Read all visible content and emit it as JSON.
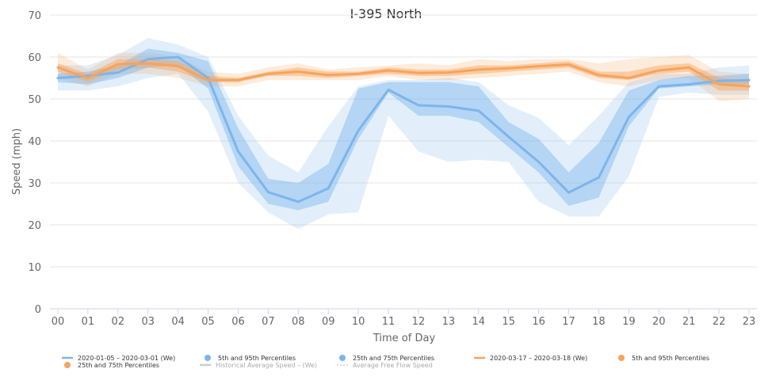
{
  "chart_data": {
    "type": "line",
    "title": "I-395 North",
    "xlabel": "Time of Day",
    "ylabel": "Speed (mph)",
    "categories": [
      "00",
      "01",
      "02",
      "03",
      "04",
      "05",
      "06",
      "07",
      "08",
      "09",
      "10",
      "11",
      "12",
      "13",
      "14",
      "15",
      "16",
      "17",
      "18",
      "19",
      "20",
      "21",
      "22",
      "23"
    ],
    "ylim": [
      0,
      70
    ],
    "yticks": [
      0,
      10,
      20,
      30,
      40,
      50,
      60,
      70
    ],
    "grid": "horizontal",
    "legend_position": "bottom",
    "series": [
      {
        "name": "2020-01-05 – 2020-03-01 (We)",
        "color": "#7cb5ec",
        "values": [
          55.0,
          55.5,
          56.3,
          59.5,
          60.0,
          55.0,
          37.5,
          27.8,
          25.5,
          28.7,
          42.5,
          52.2,
          48.5,
          48.2,
          47.2,
          41.0,
          35.0,
          27.7,
          31.3,
          45.7,
          53.0,
          53.5,
          54.3,
          54.5
        ],
        "p5": [
          52.0,
          52.0,
          53.0,
          55.0,
          56.0,
          47.0,
          30.0,
          23.0,
          19.0,
          22.5,
          23.0,
          46.0,
          37.5,
          35.0,
          35.5,
          35.0,
          25.5,
          22.0,
          22.0,
          31.5,
          50.5,
          51.5,
          51.0,
          51.0
        ],
        "p95": [
          58.0,
          58.0,
          60.5,
          64.5,
          63.0,
          60.0,
          46.0,
          36.5,
          32.5,
          43.5,
          53.0,
          54.5,
          54.5,
          55.0,
          54.0,
          48.5,
          45.5,
          39.0,
          46.0,
          54.0,
          56.0,
          56.0,
          57.5,
          58.0
        ],
        "p25": [
          54.0,
          53.5,
          55.0,
          57.5,
          58.0,
          52.5,
          34.0,
          25.0,
          23.5,
          25.5,
          40.5,
          51.5,
          46.0,
          46.0,
          44.5,
          38.5,
          32.5,
          24.5,
          26.5,
          43.5,
          52.5,
          53.0,
          53.5,
          53.5
        ],
        "p75": [
          56.0,
          56.5,
          58.0,
          62.0,
          61.0,
          59.0,
          43.0,
          31.0,
          30.0,
          34.5,
          52.5,
          54.0,
          54.0,
          54.0,
          53.0,
          44.5,
          40.5,
          32.5,
          39.5,
          52.0,
          54.5,
          55.5,
          55.5,
          56.0
        ]
      },
      {
        "name": "2020-03-17 – 2020-03-18 (We)",
        "color": "#f7a35c",
        "values": [
          57.5,
          55.0,
          58.3,
          58.5,
          57.8,
          54.5,
          54.5,
          56.0,
          56.5,
          55.7,
          56.0,
          56.8,
          56.2,
          56.3,
          57.0,
          57.3,
          57.8,
          58.2,
          55.7,
          55.0,
          56.8,
          57.5,
          53.5,
          53.0
        ],
        "p5": [
          55.0,
          53.0,
          56.0,
          56.0,
          55.0,
          53.0,
          53.0,
          54.5,
          54.5,
          54.5,
          54.5,
          55.5,
          54.5,
          54.5,
          55.0,
          55.5,
          56.0,
          56.5,
          54.0,
          53.0,
          54.5,
          55.0,
          49.5,
          50.0
        ],
        "p95": [
          61.0,
          57.0,
          61.0,
          61.0,
          60.0,
          56.5,
          56.0,
          57.5,
          58.5,
          57.0,
          57.5,
          58.0,
          58.5,
          58.0,
          59.5,
          59.0,
          59.5,
          59.5,
          58.5,
          59.5,
          60.0,
          60.5,
          56.5,
          56.0
        ],
        "p25": [
          56.5,
          54.0,
          57.0,
          57.5,
          56.5,
          54.0,
          54.0,
          55.5,
          55.5,
          55.0,
          55.5,
          56.0,
          55.5,
          55.5,
          56.0,
          56.5,
          57.0,
          57.5,
          55.0,
          54.5,
          56.0,
          56.5,
          52.0,
          52.0
        ],
        "p75": [
          58.5,
          56.0,
          59.5,
          59.5,
          59.0,
          55.5,
          55.0,
          56.5,
          57.5,
          56.5,
          56.5,
          57.5,
          57.0,
          57.0,
          58.0,
          58.0,
          58.5,
          59.0,
          56.5,
          56.5,
          58.0,
          58.5,
          55.0,
          54.5
        ]
      }
    ],
    "legend": [
      {
        "label": "2020-01-05 – 2020-03-01 (We)",
        "color": "#7cb5ec",
        "symbol": "line",
        "active": true
      },
      {
        "label": "5th and 95th Percentiles",
        "color": "#7cb5ec",
        "symbol": "dot",
        "active": true
      },
      {
        "label": "25th and 75th Percentiles",
        "color": "#7cb5ec",
        "symbol": "dot",
        "active": true
      },
      {
        "label": "2020-03-17 – 2020-03-18 (We)",
        "color": "#f7a35c",
        "symbol": "line",
        "active": true
      },
      {
        "label": "5th and 95th Percentiles",
        "color": "#f7a35c",
        "symbol": "dot",
        "active": true
      },
      {
        "label": "25th and 75th Percentiles",
        "color": "#f7a35c",
        "symbol": "dot",
        "active": true
      },
      {
        "label": "Historical Average Speed – (We)",
        "color": "#cccccc",
        "symbol": "line",
        "active": false
      },
      {
        "label": "Average Free Flow Speed",
        "color": "#cccccc",
        "symbol": "dotted",
        "active": false
      }
    ]
  }
}
